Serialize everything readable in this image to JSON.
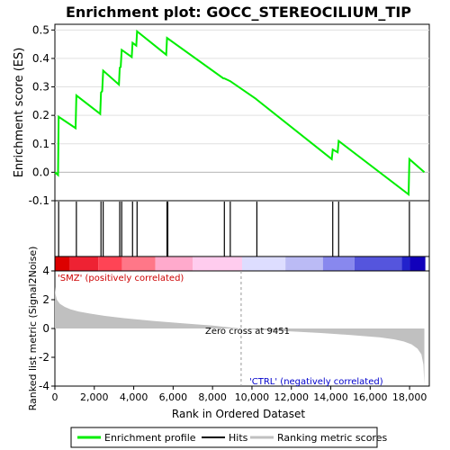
{
  "chart_data": {
    "type": "line",
    "title": "Enrichment plot: GOCC_STEREOCILIUM_TIP",
    "es_panel": {
      "ylabel": "Enrichment score (ES)",
      "ylim": [
        -0.1,
        0.52
      ],
      "yticks": [
        -0.1,
        0.0,
        0.1,
        0.2,
        0.3,
        0.4,
        0.5
      ],
      "ytick_labels": [
        "-0.1",
        "0.0",
        "0.1",
        "0.2",
        "0.3",
        "0.4",
        "0.5"
      ],
      "series": [
        {
          "name": "Enrichment profile",
          "color": "#00ff00",
          "x": [
            0,
            160,
            190,
            1050,
            1090,
            2300,
            2340,
            2400,
            2450,
            3250,
            3290,
            3340,
            3390,
            3900,
            3940,
            4130,
            4170,
            5650,
            5690,
            8550,
            8600,
            8900,
            10200,
            10250,
            14050,
            14100,
            14350,
            14400,
            17950,
            17990,
            18750
          ],
          "y": [
            0.0,
            -0.01,
            0.195,
            0.155,
            0.27,
            0.205,
            0.28,
            0.285,
            0.357,
            0.308,
            0.367,
            0.37,
            0.43,
            0.405,
            0.455,
            0.445,
            0.495,
            0.413,
            0.472,
            0.33,
            0.33,
            0.32,
            0.258,
            0.255,
            0.046,
            0.08,
            0.07,
            0.11,
            -0.078,
            0.046,
            0.0
          ]
        }
      ]
    },
    "hits": [
      190,
      1090,
      2340,
      2450,
      3290,
      3390,
      3940,
      4170,
      5690,
      5730,
      8600,
      8900,
      10250,
      14100,
      14400,
      17990
    ],
    "heatmap_colors": [
      "#dd0000",
      "#ee2233",
      "#ff4455",
      "#ff7788",
      "#ffaacc",
      "#ffccee",
      "#ddddff",
      "#bbbbf5",
      "#8888ee",
      "#5555dd",
      "#2222cc",
      "#1100bb"
    ],
    "heatmap_breaks": [
      0,
      750,
      2200,
      3400,
      5100,
      7000,
      9500,
      11700,
      13600,
      15200,
      17600,
      18000,
      18800
    ],
    "metric_panel": {
      "ylabel": "Ranked list metric (Signal2Noise)",
      "ylim": [
        -4,
        4
      ],
      "yticks": [
        -4,
        -2,
        0,
        2,
        4
      ],
      "ytick_labels": [
        "-4",
        "-2",
        "0",
        "2",
        "4"
      ],
      "fill_color": "#c0c0c0",
      "curve_x": [
        0,
        30,
        100,
        250,
        500,
        800,
        1200,
        1800,
        2500,
        3500,
        5000,
        6500,
        8000,
        9451,
        10500,
        12000,
        13500,
        15000,
        16500,
        17200,
        17700,
        18100,
        18400,
        18600,
        18700,
        18750
      ],
      "curve_y": [
        2.9,
        2.4,
        2.0,
        1.72,
        1.5,
        1.33,
        1.18,
        1.03,
        0.88,
        0.72,
        0.52,
        0.36,
        0.2,
        0.0,
        -0.1,
        -0.2,
        -0.31,
        -0.45,
        -0.62,
        -0.75,
        -0.9,
        -1.1,
        -1.4,
        -1.8,
        -2.5,
        -3.9
      ],
      "pos_label": "'SMZ' (positively correlated)",
      "neg_label": "'CTRL' (negatively correlated)",
      "zero_cross_label": "Zero cross at 9451",
      "zero_cross": 9451
    },
    "xaxis": {
      "xlabel": "Rank in Ordered Dataset",
      "xlim": [
        0,
        19000
      ],
      "xticks": [
        0,
        2000,
        4000,
        6000,
        8000,
        10000,
        12000,
        14000,
        16000,
        18000
      ],
      "xtick_labels": [
        "0",
        "2,000",
        "4,000",
        "6,000",
        "8,000",
        "10,000",
        "12,000",
        "14,000",
        "16,000",
        "18,000"
      ]
    },
    "legend": {
      "placement": "bottom",
      "items": [
        {
          "label": "Enrichment profile",
          "color": "#00ff00"
        },
        {
          "label": "Hits",
          "color": "#000000"
        },
        {
          "label": "Ranking metric scores",
          "color": "#c0c0c0"
        }
      ]
    }
  }
}
